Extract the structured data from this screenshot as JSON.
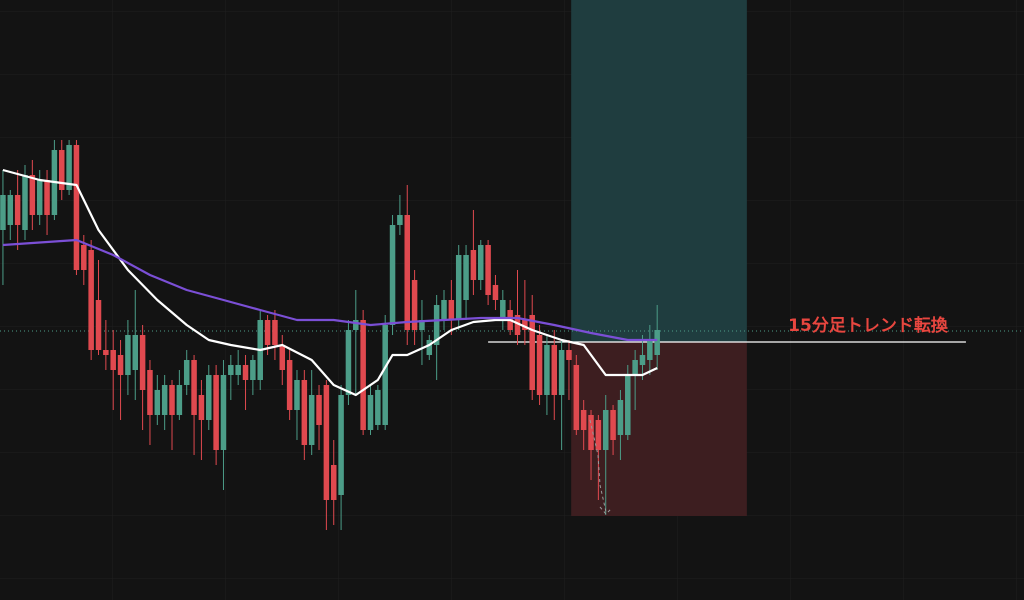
{
  "chart_data": {
    "type": "candlestick",
    "ylim": [
      0,
      600
    ],
    "xlim": [
      -0.4,
      138.9
    ],
    "up_color": "#4c9d88",
    "down_color": "#e0494f",
    "open": [
      370,
      375,
      405,
      370,
      425,
      385,
      420,
      385,
      450,
      410,
      455,
      355,
      350,
      300,
      250,
      250,
      245,
      225,
      230,
      265,
      230,
      185,
      185,
      215,
      185,
      215,
      240,
      205,
      180,
      225,
      150,
      225,
      225,
      235,
      220,
      220,
      280,
      280,
      255,
      240,
      190,
      220,
      155,
      205,
      215,
      135,
      105,
      205,
      270,
      280,
      170,
      175,
      175,
      275,
      375,
      385,
      320,
      270,
      245,
      255,
      280,
      300,
      280,
      300,
      350,
      320,
      355,
      315,
      280,
      290,
      285,
      280,
      285,
      265,
      205,
      255,
      205,
      250,
      235,
      190,
      185,
      180,
      150,
      190,
      165,
      165,
      225,
      235,
      240,
      245
    ],
    "high": [
      430,
      410,
      430,
      435,
      440,
      430,
      430,
      460,
      460,
      460,
      460,
      365,
      360,
      340,
      280,
      270,
      260,
      280,
      310,
      275,
      240,
      225,
      225,
      220,
      230,
      250,
      245,
      220,
      235,
      235,
      240,
      245,
      250,
      245,
      245,
      290,
      285,
      290,
      265,
      250,
      230,
      230,
      230,
      215,
      220,
      160,
      215,
      280,
      310,
      290,
      215,
      215,
      285,
      385,
      405,
      415,
      330,
      300,
      265,
      305,
      310,
      320,
      355,
      355,
      390,
      360,
      360,
      325,
      310,
      300,
      330,
      320,
      305,
      275,
      265,
      270,
      260,
      260,
      245,
      200,
      190,
      185,
      205,
      195,
      210,
      235,
      250,
      265,
      275,
      295
    ],
    "low": [
      315,
      360,
      350,
      360,
      370,
      375,
      365,
      380,
      400,
      405,
      325,
      315,
      240,
      245,
      230,
      190,
      180,
      205,
      200,
      170,
      155,
      175,
      170,
      150,
      180,
      205,
      145,
      140,
      170,
      135,
      110,
      200,
      215,
      190,
      205,
      210,
      245,
      240,
      215,
      180,
      160,
      140,
      145,
      150,
      70,
      75,
      70,
      195,
      205,
      165,
      165,
      170,
      170,
      265,
      365,
      255,
      255,
      235,
      240,
      220,
      270,
      265,
      270,
      280,
      305,
      310,
      295,
      290,
      270,
      265,
      255,
      255,
      200,
      195,
      185,
      180,
      150,
      200,
      165,
      150,
      120,
      100,
      85,
      145,
      140,
      160,
      190,
      220,
      225,
      230
    ],
    "close": [
      405,
      405,
      375,
      425,
      385,
      420,
      385,
      450,
      410,
      455,
      330,
      330,
      250,
      250,
      245,
      230,
      225,
      265,
      265,
      210,
      185,
      210,
      215,
      185,
      215,
      240,
      185,
      180,
      225,
      150,
      225,
      235,
      235,
      220,
      240,
      280,
      255,
      255,
      230,
      190,
      220,
      155,
      205,
      175,
      100,
      100,
      205,
      270,
      280,
      170,
      205,
      210,
      275,
      375,
      385,
      270,
      270,
      280,
      260,
      295,
      300,
      280,
      345,
      345,
      320,
      355,
      305,
      300,
      300,
      270,
      265,
      270,
      210,
      205,
      255,
      205,
      250,
      240,
      170,
      170,
      150,
      150,
      190,
      160,
      200,
      225,
      240,
      245,
      260,
      270
    ],
    "moving_averages": [
      {
        "color": "#ffffff",
        "x": [
          0,
          5,
          10,
          13,
          17,
          21,
          25,
          28,
          31,
          35,
          38,
          42,
          45,
          48,
          51,
          53,
          55,
          58,
          61,
          64,
          67,
          69,
          72,
          76,
          79,
          82,
          85,
          87,
          89
        ],
        "values": [
          430,
          420,
          415,
          370,
          330,
          300,
          275,
          260,
          255,
          250,
          255,
          240,
          215,
          205,
          220,
          245,
          245,
          255,
          270,
          278,
          280,
          280,
          270,
          260,
          255,
          225,
          225,
          225,
          232
        ]
      },
      {
        "color": "#7b4fd6",
        "x": [
          0,
          10,
          15,
          20,
          25,
          30,
          35,
          40,
          45,
          50,
          55,
          60,
          65,
          70,
          75,
          80,
          85,
          89
        ],
        "values": [
          355,
          360,
          345,
          325,
          310,
          300,
          290,
          280,
          280,
          275,
          278,
          280,
          282,
          282,
          275,
          267,
          260,
          260
        ]
      }
    ],
    "current_price": 269,
    "price_line": {
      "value": 258,
      "x": [
        66,
        131
      ]
    },
    "position": {
      "entry": 258,
      "target": 600,
      "stop": 84,
      "x": [
        77.3,
        101.2
      ],
      "target_color": "#1f3d3f",
      "stop_color": "#3d1e20"
    },
    "annotation": "15分足トレンド転換"
  }
}
